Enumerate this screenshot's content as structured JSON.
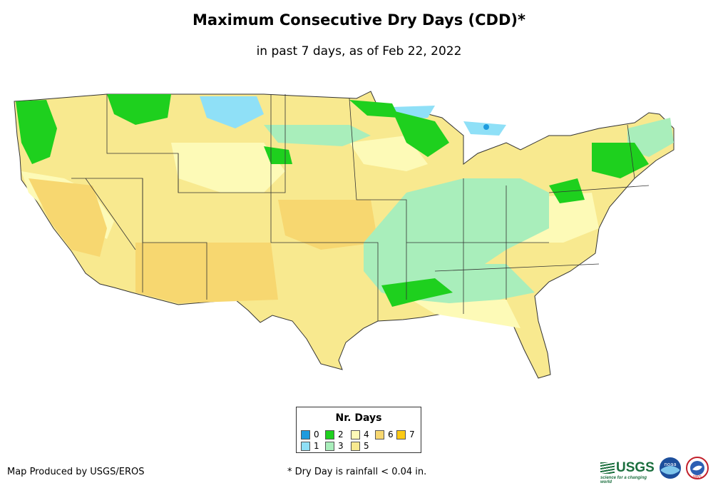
{
  "title": "Maximum Consecutive Dry Days (CDD)*",
  "subtitle": "in past 7 days, as of Feb 22, 2022",
  "legend": {
    "title": "Nr. Days",
    "items": [
      {
        "label": "0",
        "color": "#1e9bde"
      },
      {
        "label": "1",
        "color": "#8fe0f7"
      },
      {
        "label": "2",
        "color": "#1ed01e"
      },
      {
        "label": "3",
        "color": "#a9eebb"
      },
      {
        "label": "4",
        "color": "#fdfab7"
      },
      {
        "label": "5",
        "color": "#f8e98f"
      },
      {
        "label": "6",
        "color": "#f7d770"
      },
      {
        "label": "7",
        "color": "#fcca14"
      }
    ]
  },
  "credit": "Map Produced by USGS/EROS",
  "footnote": "* Dry Day is rainfall < 0.04 in.",
  "logos": {
    "usgs": "USGS",
    "usgs_tagline": "science for a changing world",
    "noaa": "noaa",
    "nws": "NWS"
  }
}
